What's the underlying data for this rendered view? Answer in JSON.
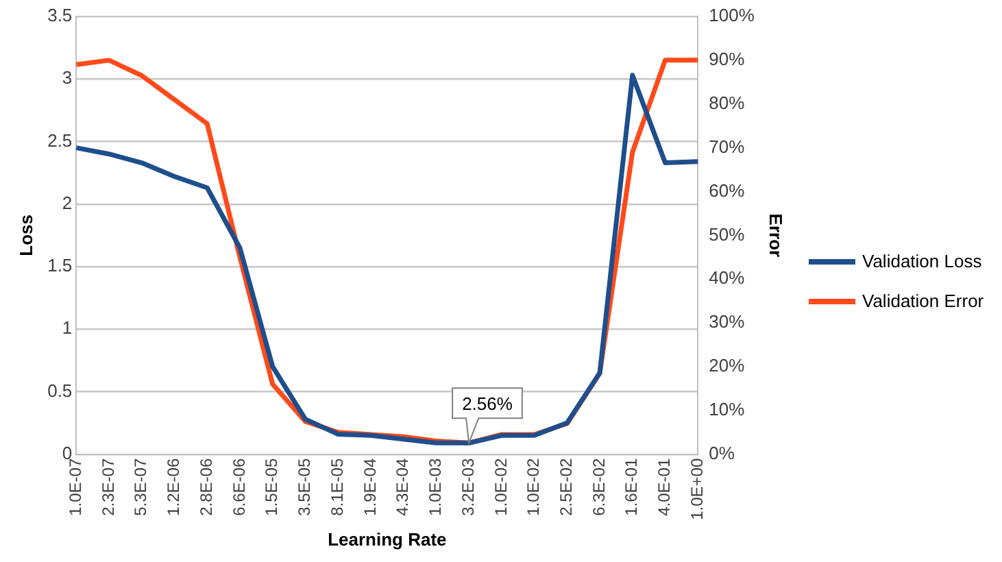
{
  "chart_data": {
    "type": "line",
    "xlabel": "Learning Rate",
    "ylabel": "Loss",
    "y2label": "Error",
    "categories": [
      "1.0E-07",
      "2.3E-07",
      "5.3E-07",
      "1.2E-06",
      "2.8E-06",
      "6.6E-06",
      "1.5E-05",
      "3.5E-05",
      "8.1E-05",
      "1.9E-04",
      "4.3E-04",
      "1.0E-03",
      "3.2E-03",
      "1.0E-02",
      "1.0E-02",
      "2.5E-02",
      "6.3E-02",
      "1.6E-01",
      "4.0E-01",
      "1.0E+00"
    ],
    "series": [
      {
        "name": "Validation Loss",
        "color": "#1f4e8c",
        "values": [
          2.45,
          2.4,
          2.33,
          2.22,
          2.13,
          1.65,
          0.7,
          0.28,
          0.16,
          0.15,
          0.12,
          0.09,
          0.09,
          0.15,
          0.15,
          0.25,
          0.65,
          3.03,
          2.33,
          2.34
        ]
      },
      {
        "name": "Validation Error",
        "color": "#ff4a1a",
        "axis": "y2",
        "values": [
          89,
          90,
          86.5,
          81,
          75.5,
          45,
          16,
          7.5,
          5,
          4.5,
          4,
          3,
          2.56,
          4.5,
          4.5,
          7,
          18.5,
          69,
          90,
          90
        ],
        "value_labels": [
          null,
          null,
          null,
          null,
          null,
          null,
          null,
          null,
          null,
          null,
          null,
          null,
          "2.56%",
          null,
          null,
          null,
          null,
          null,
          null,
          null
        ]
      }
    ],
    "ylim": [
      0,
      3.5
    ],
    "yticks": [
      0,
      0.5,
      1,
      1.5,
      2,
      2.5,
      3,
      3.5
    ],
    "y2lim": [
      0,
      100
    ],
    "y2ticks": [
      {
        "value": 0,
        "label": "0%"
      },
      {
        "value": 10,
        "label": "10%"
      },
      {
        "value": 20,
        "label": "20%"
      },
      {
        "value": 30,
        "label": "30%"
      },
      {
        "value": 40,
        "label": "40%"
      },
      {
        "value": 50,
        "label": "50%"
      },
      {
        "value": 60,
        "label": "60%"
      },
      {
        "value": 70,
        "label": "70%"
      },
      {
        "value": 80,
        "label": "80%"
      },
      {
        "value": 90,
        "label": "90%"
      },
      {
        "value": 100,
        "label": "100%"
      }
    ],
    "grid": "y",
    "legend": "right",
    "marker": "none",
    "line_style": "solid"
  }
}
